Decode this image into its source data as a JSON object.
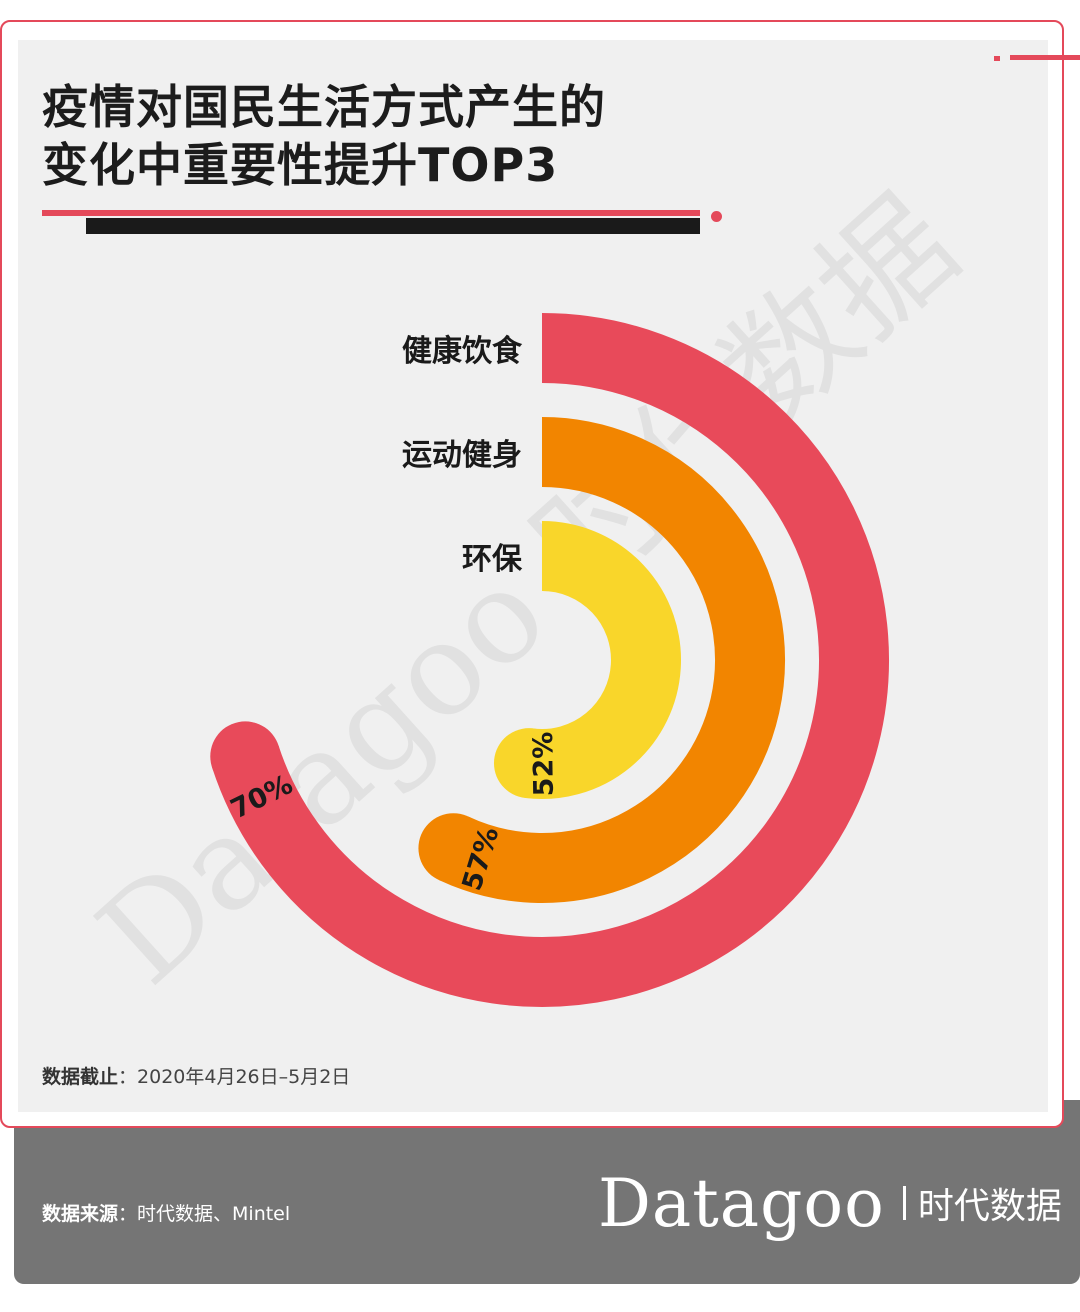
{
  "title": {
    "line1": "疫情对国民生活方式产生的",
    "line2": "变化中重要性提升TOP3"
  },
  "chart_data": {
    "type": "radial-bar",
    "series": [
      {
        "name": "健康饮食",
        "value": 70,
        "label": "70%",
        "color": "#e84a5a"
      },
      {
        "name": "运动健身",
        "value": 57,
        "label": "57%",
        "color": "#f28500"
      },
      {
        "name": "环保",
        "value": 52,
        "label": "52%",
        "color": "#f9d62a"
      }
    ]
  },
  "watermark": "Datagoo 时代数据",
  "note": {
    "label": "数据截止",
    "text": "：2020年4月26日–5月2日"
  },
  "source": {
    "label": "数据来源",
    "text": "：时代数据、Mintel"
  },
  "brand": {
    "logo": "Datagoo",
    "cn": "时代数据"
  }
}
